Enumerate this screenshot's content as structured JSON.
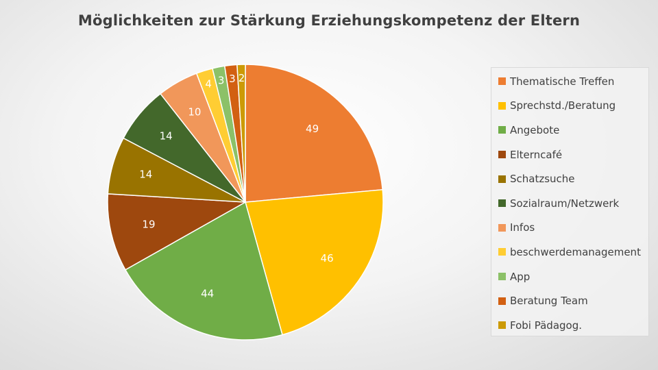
{
  "chart_data": {
    "type": "pie",
    "title": "Möglichkeiten zur Stärkung Erziehungskompetenz der Eltern",
    "legend_position": "right",
    "categories": [
      "Thematische Treffen",
      "Sprechstd./Beratung",
      "Angebote",
      "Elterncafé",
      "Schatzsuche",
      "Sozialraum/Netzwerk",
      "Infos",
      "beschwerdemanagement",
      "App",
      "Beratung Team",
      "Fobi Pädagog."
    ],
    "values": [
      49,
      46,
      44,
      19,
      14,
      14,
      10,
      4,
      3,
      3,
      2
    ],
    "colors": [
      "#ED7D31",
      "#FFC000",
      "#70AD47",
      "#9E480E",
      "#997300",
      "#43682B",
      "#F1975A",
      "#FFCD33",
      "#8CC168",
      "#D26012",
      "#CC9A06"
    ],
    "label_colors": [
      "#ffffff",
      "#ffffff",
      "#ffffff",
      "#ffffff",
      "#ffffff",
      "#ffffff",
      "#ffffff",
      "#ffffff",
      "#ffffff",
      "#ffffff",
      "#ffffff"
    ]
  }
}
